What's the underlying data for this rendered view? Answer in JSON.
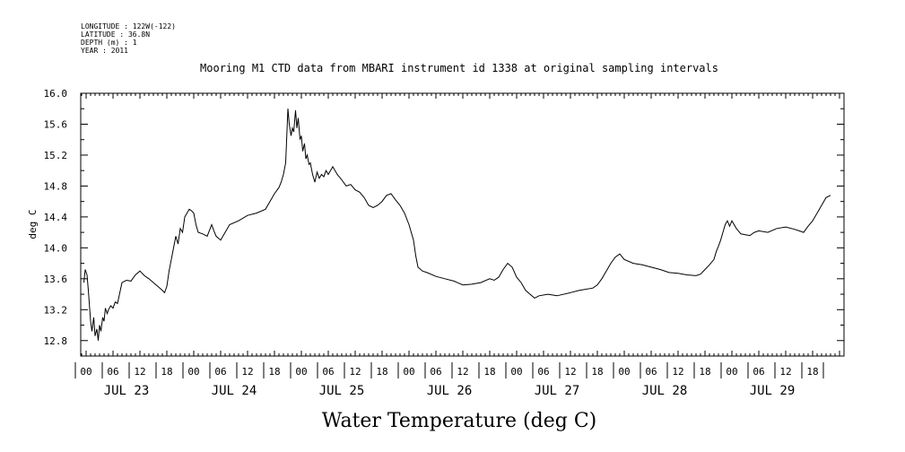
{
  "meta": {
    "longitude": "LONGITUDE : 122W(-122)",
    "latitude": "LATITUDE : 36.8N",
    "depth": "DEPTH (m) : 1",
    "year": "YEAR : 2011"
  },
  "chart_data": {
    "type": "line",
    "title": "Mooring M1 CTD data from MBARI instrument id 1338 at original sampling intervals",
    "xlabel": "Water Temperature (deg C)",
    "ylabel": "deg C",
    "ylim": [
      12.6,
      16.0
    ],
    "y_ticks": [
      "12.8",
      "13.2",
      "13.6",
      "14.0",
      "14.4",
      "14.8",
      "15.2",
      "15.6",
      "16.0"
    ],
    "xlim_hours": [
      0,
      168
    ],
    "x_hour_ticks": [
      "00",
      "06",
      "12",
      "18",
      "00",
      "06",
      "12",
      "18",
      "00",
      "06",
      "12",
      "18",
      "00",
      "06",
      "12",
      "18",
      "00",
      "06",
      "12",
      "18",
      "00",
      "06",
      "12",
      "18",
      "00",
      "06",
      "12",
      "18"
    ],
    "day_labels": [
      "JUL 23",
      "JUL 24",
      "JUL 25",
      "JUL 26",
      "JUL 27",
      "JUL 28",
      "JUL 29"
    ],
    "grid": false,
    "series": [
      {
        "color": "#000000",
        "x": [
          -0.5,
          -0.2,
          0.2,
          0.5,
          1.0,
          1.3,
          1.7,
          2.0,
          2.4,
          2.7,
          3.0,
          3.3,
          3.7,
          4.0,
          4.3,
          4.7,
          5.0,
          5.5,
          6.0,
          6.5,
          7.0,
          8.0,
          9.0,
          10.0,
          11.0,
          12.0,
          13.0,
          14.0,
          15.0,
          16.0,
          17.0,
          17.5,
          18.0,
          18.5,
          19.0,
          19.5,
          20.0,
          20.5,
          21.0,
          21.5,
          22.0,
          22.5,
          23.0,
          23.5,
          24.0,
          24.5,
          25.0,
          26.0,
          27.0,
          28.0,
          28.5,
          29.0,
          30.0,
          31.0,
          32.0,
          34.0,
          36.0,
          38.0,
          40.0,
          41.0,
          42.0,
          43.0,
          43.5,
          44.0,
          44.5,
          45.0,
          45.3,
          45.7,
          46.0,
          46.3,
          46.7,
          47.0,
          47.3,
          47.7,
          48.0,
          48.3,
          48.7,
          49.0,
          49.3,
          49.7,
          50.0,
          50.5,
          51.0,
          51.5,
          52.0,
          52.5,
          53.0,
          53.5,
          54.0,
          55.0,
          56.0,
          57.0,
          58.0,
          59.0,
          60.0,
          61.0,
          62.0,
          63.0,
          64.0,
          65.0,
          66.0,
          67.0,
          68.0,
          69.0,
          70.0,
          71.0,
          72.0,
          72.5,
          73.0,
          73.5,
          74.0,
          75.0,
          76.0,
          78.0,
          80.0,
          82.0,
          84.0,
          86.0,
          88.0,
          90.0,
          91.0,
          92.0,
          93.0,
          94.0,
          95.0,
          96.0,
          97.0,
          98.0,
          99.0,
          100.0,
          101.0,
          103.0,
          105.0,
          108.0,
          110.0,
          113.0,
          114.0,
          115.0,
          116.0,
          117.0,
          118.0,
          119.0,
          120.0,
          122.0,
          124.0,
          126.0,
          128.0,
          130.0,
          132.0,
          134.0,
          136.0,
          137.0,
          138.0,
          139.0,
          140.0,
          140.5,
          141.0,
          141.5,
          142.0,
          142.5,
          143.0,
          143.5,
          144.0,
          145.0,
          146.0,
          147.0,
          148.0,
          149.0,
          150.0,
          152.0,
          154.0,
          156.0,
          158.0,
          159.0,
          160.0,
          161.0,
          162.0,
          163.0,
          164.0,
          165.0,
          166.0
        ],
        "y": [
          13.55,
          13.72,
          13.65,
          13.45,
          13.05,
          12.92,
          13.1,
          12.86,
          12.95,
          12.8,
          13.0,
          12.92,
          13.1,
          13.05,
          13.22,
          13.15,
          13.2,
          13.25,
          13.22,
          13.3,
          13.28,
          13.55,
          13.58,
          13.57,
          13.65,
          13.7,
          13.64,
          13.6,
          13.55,
          13.5,
          13.45,
          13.42,
          13.5,
          13.7,
          13.85,
          14.0,
          14.15,
          14.05,
          14.25,
          14.2,
          14.4,
          14.45,
          14.5,
          14.48,
          14.45,
          14.3,
          14.2,
          14.18,
          14.15,
          14.3,
          14.22,
          14.15,
          14.1,
          14.2,
          14.3,
          14.35,
          14.42,
          14.45,
          14.5,
          14.6,
          14.7,
          14.78,
          14.85,
          14.95,
          15.1,
          15.8,
          15.6,
          15.45,
          15.55,
          15.5,
          15.78,
          15.55,
          15.68,
          15.4,
          15.45,
          15.25,
          15.35,
          15.15,
          15.2,
          15.08,
          15.1,
          14.95,
          14.85,
          14.98,
          14.9,
          14.95,
          14.92,
          15.0,
          14.95,
          15.05,
          14.95,
          14.88,
          14.8,
          14.82,
          14.75,
          14.72,
          14.65,
          14.55,
          14.52,
          14.55,
          14.6,
          14.68,
          14.7,
          14.62,
          14.55,
          14.45,
          14.3,
          14.2,
          14.1,
          13.9,
          13.75,
          13.7,
          13.68,
          13.63,
          13.6,
          13.57,
          13.52,
          13.53,
          13.55,
          13.6,
          13.58,
          13.62,
          13.72,
          13.8,
          13.75,
          13.62,
          13.55,
          13.45,
          13.4,
          13.35,
          13.38,
          13.4,
          13.38,
          13.42,
          13.45,
          13.48,
          13.52,
          13.6,
          13.7,
          13.8,
          13.88,
          13.92,
          13.85,
          13.8,
          13.78,
          13.75,
          13.72,
          13.68,
          13.67,
          13.65,
          13.64,
          13.66,
          13.72,
          13.78,
          13.85,
          13.95,
          14.02,
          14.1,
          14.2,
          14.3,
          14.35,
          14.28,
          14.35,
          14.25,
          14.18,
          14.17,
          14.16,
          14.2,
          14.22,
          14.2,
          14.25,
          14.27,
          14.24,
          14.22,
          14.2,
          14.28,
          14.35,
          14.45,
          14.55,
          14.65,
          14.68
        ]
      }
    ]
  }
}
